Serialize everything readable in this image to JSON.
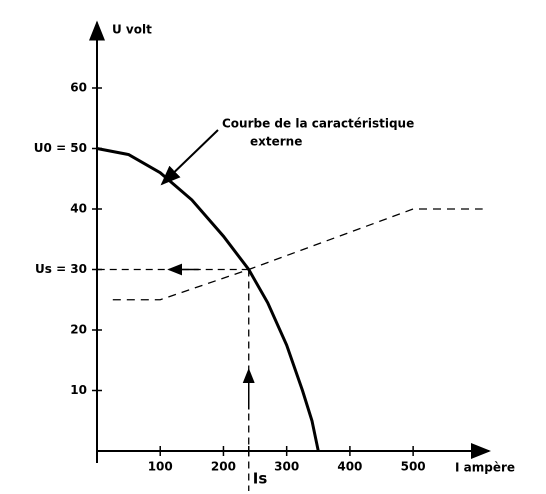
{
  "chart_data": {
    "type": "line",
    "ylabel": "U volt",
    "xlabel": "I ampère",
    "annotation": [
      "Courbe de la caractéristique",
      "externe"
    ],
    "xlim": [
      0,
      620
    ],
    "ylim": [
      0,
      70
    ],
    "xticks": [
      100,
      200,
      {
        "value": 240,
        "label": "Is"
      },
      300,
      400,
      500
    ],
    "yticks": [
      10,
      20,
      {
        "value": 30,
        "label": "Us = 30"
      },
      40,
      {
        "value": 50,
        "label": "U0 = 50"
      },
      60
    ],
    "series": [
      {
        "color": "#000000",
        "dashed": false,
        "x": [
          0,
          50,
          100,
          150,
          200,
          240,
          270,
          300,
          325,
          340,
          350
        ],
        "values": [
          50,
          49,
          46,
          41.5,
          35.5,
          30,
          24.5,
          17.5,
          10,
          5,
          0
        ]
      },
      {
        "color": "#000000",
        "dashed": true,
        "x": [
          25,
          100,
          240,
          500,
          610
        ],
        "values": [
          25,
          25,
          30,
          40,
          40
        ]
      }
    ]
  }
}
